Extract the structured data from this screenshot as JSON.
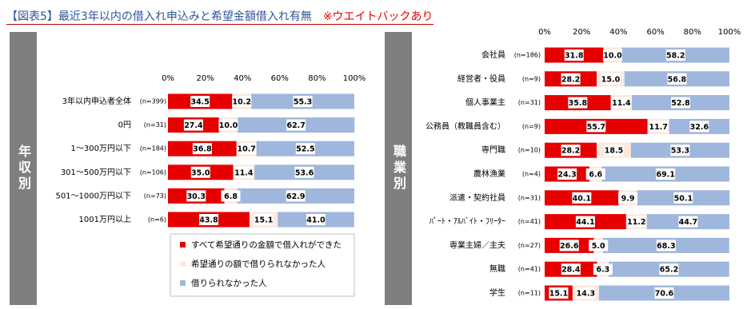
{
  "title": "【図表5】最近3年以内の借入れ申込みと希望金額借入れ有無",
  "note": "※ウエイトバックあり",
  "chart_data": [
    {
      "type": "stacked-barh",
      "side_label": "年収別",
      "categories": [
        "3年以内申込者全体",
        "0円",
        "1～300万円以下",
        "301～500万円以下",
        "501～1000万円以下",
        "1001万円以上"
      ],
      "sample_sizes": [
        "(n=399)",
        "(n=31)",
        "(n=184)",
        "(n=106)",
        "(n=73)",
        "(n=6)"
      ],
      "series": [
        {
          "name": "すべて希望通りの金額で借入れができた",
          "color": "#e60000",
          "values": [
            34.5,
            27.4,
            36.8,
            35.0,
            30.3,
            43.8
          ],
          "value_labels": [
            "34.5",
            "27.4",
            "36.8",
            "35.0",
            "30.3",
            "43.8"
          ]
        },
        {
          "name": "希望通りの額で借りられなかった人",
          "color": "#fde9df",
          "values": [
            10.2,
            10.0,
            10.7,
            11.4,
            6.8,
            15.1
          ],
          "value_labels": [
            "10.2",
            "10.0",
            "10.7",
            "11.4",
            "6.8",
            "15.1"
          ]
        },
        {
          "name": "借りられなかった人",
          "color": "#9fb7dc",
          "values": [
            55.3,
            62.7,
            52.5,
            53.6,
            62.9,
            41.0
          ],
          "value_labels": [
            "55.3",
            "62.7",
            "52.5",
            "53.6",
            "62.9",
            "41.0"
          ]
        }
      ],
      "xlim": [
        0,
        100
      ],
      "xticks": [
        {
          "value": 0,
          "label": "0%"
        },
        {
          "value": 20,
          "label": "20%"
        },
        {
          "value": 40,
          "label": "40%"
        },
        {
          "value": 60,
          "label": "60%"
        },
        {
          "value": 80,
          "label": "80%"
        },
        {
          "value": 100,
          "label": "100%"
        }
      ],
      "legend": "lower-right"
    },
    {
      "type": "stacked-barh",
      "side_label": "職業別",
      "categories": [
        "会社員",
        "経営者・役員",
        "個人事業主",
        "公務員（教職員含む）",
        "専門職",
        "農林漁業",
        "派遣・契約社員",
        "ﾊﾟｰﾄ・ｱﾙﾊﾞｲﾄ・ﾌﾘｰﾀｰ",
        "専業主婦／主夫",
        "無職",
        "学生"
      ],
      "sample_sizes": [
        "(n=186)",
        "(n=9)",
        "(n=31)",
        "(n=9)",
        "(n=10)",
        "(n=4)",
        "(n=31)",
        "(n=41)",
        "(n=27)",
        "(n=41)",
        "(n=11)"
      ],
      "series": [
        {
          "color": "#e60000",
          "values": [
            31.8,
            28.2,
            35.8,
            55.7,
            28.2,
            24.3,
            40.1,
            44.1,
            26.6,
            28.4,
            15.1
          ],
          "value_labels": [
            "31.8",
            "28.2",
            "35.8",
            "55.7",
            "28.2",
            "24.3",
            "40.1",
            "44.1",
            "26.6",
            "28.4",
            "15.1"
          ]
        },
        {
          "color": "#fde9df",
          "values": [
            10.0,
            15.0,
            11.4,
            11.7,
            18.5,
            6.6,
            9.9,
            11.2,
            5.0,
            6.3,
            14.3
          ],
          "value_labels": [
            "10.0",
            "15.0",
            "11.4",
            "11.7",
            "18.5",
            "6.6",
            "9.9",
            "11.2",
            "5.0",
            "6.3",
            "14.3"
          ]
        },
        {
          "color": "#9fb7dc",
          "values": [
            58.2,
            56.8,
            52.8,
            32.6,
            53.3,
            69.1,
            50.1,
            44.7,
            68.3,
            65.2,
            70.6
          ],
          "value_labels": [
            "58.2",
            "56.8",
            "52.8",
            "32.6",
            "53.3",
            "69.1",
            "50.1",
            "44.7",
            "68.3",
            "65.2",
            "70.6"
          ]
        }
      ],
      "xlim": [
        0,
        100
      ],
      "xticks": [
        {
          "value": 0,
          "label": "0%"
        },
        {
          "value": 20,
          "label": "20%"
        },
        {
          "value": 40,
          "label": "40%"
        },
        {
          "value": 60,
          "label": "60%"
        },
        {
          "value": 80,
          "label": "80%"
        },
        {
          "value": 100,
          "label": "100%"
        }
      ]
    }
  ]
}
